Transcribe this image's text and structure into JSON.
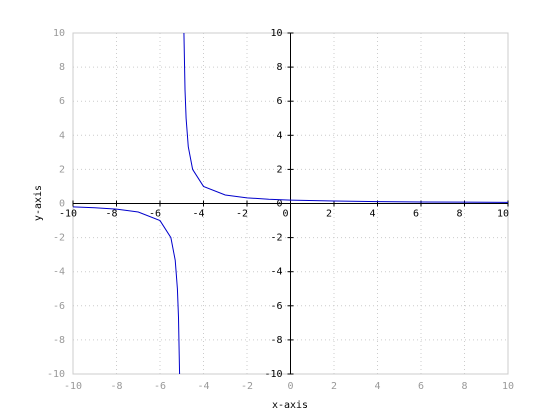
{
  "chart_data": {
    "type": "line",
    "x_label": "x-axis",
    "y_label": "y-axis",
    "xlim": [
      -10,
      10
    ],
    "ylim": [
      -10,
      10
    ],
    "xticks": [
      -10,
      -8,
      -6,
      -4,
      -2,
      0,
      2,
      4,
      6,
      8,
      10
    ],
    "yticks": [
      -10,
      -8,
      -6,
      -4,
      -2,
      0,
      2,
      4,
      6,
      8,
      10
    ],
    "grid": true,
    "x": [
      -10,
      -9,
      -8,
      -7,
      -6,
      -5.5,
      -5.3,
      -5.2,
      -5.15,
      -5.1,
      -5,
      -4.9,
      -4.85,
      -4.8,
      -4.7,
      -4.5,
      -4,
      -3,
      -2,
      -1,
      0,
      2,
      4,
      6,
      8,
      10
    ],
    "series": [
      {
        "color": "#0000cc",
        "values": [
          -0.2,
          -0.25,
          -0.333,
          -0.5,
          -1,
          -2,
          -3.333,
          -5,
          -6.667,
          -10,
          null,
          10,
          6.667,
          5,
          3.333,
          2,
          1,
          0.5,
          0.333,
          0.25,
          0.2,
          0.143,
          0.111,
          0.091,
          0.077,
          0.067
        ]
      }
    ]
  }
}
